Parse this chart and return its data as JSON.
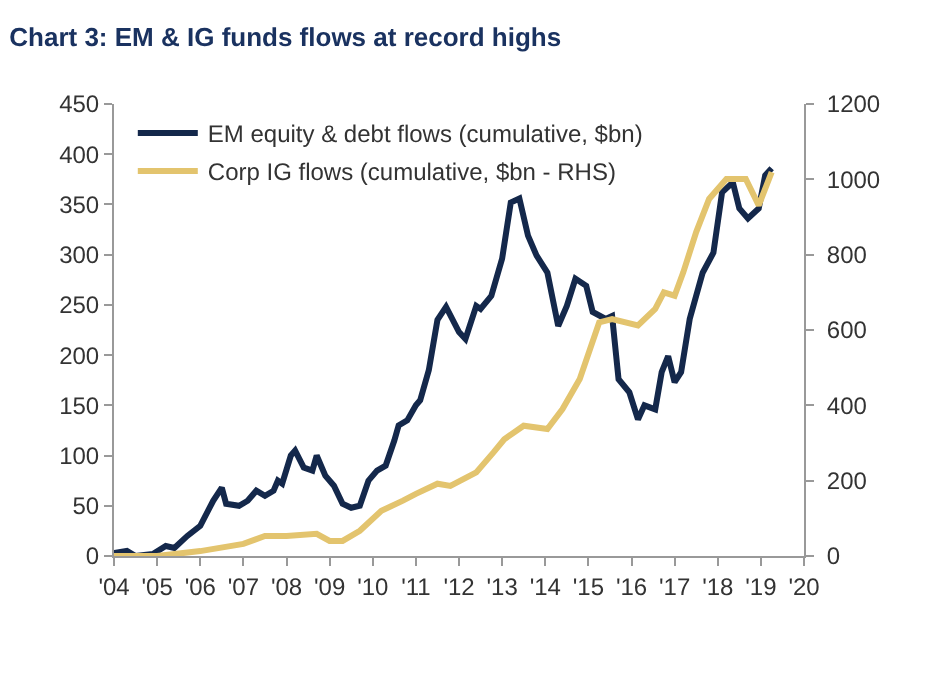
{
  "chart_data": {
    "type": "line",
    "title": "Chart 3: EM & IG funds flows at record highs",
    "xlim": [
      2004,
      2020
    ],
    "xticks": [
      {
        "value": 2004,
        "label": "'04"
      },
      {
        "value": 2005,
        "label": "'05"
      },
      {
        "value": 2006,
        "label": "'06"
      },
      {
        "value": 2007,
        "label": "'07"
      },
      {
        "value": 2008,
        "label": "'08"
      },
      {
        "value": 2009,
        "label": "'09"
      },
      {
        "value": 2010,
        "label": "'10"
      },
      {
        "value": 2011,
        "label": "'11"
      },
      {
        "value": 2012,
        "label": "'12"
      },
      {
        "value": 2013,
        "label": "'13"
      },
      {
        "value": 2014,
        "label": "'14"
      },
      {
        "value": 2015,
        "label": "'15"
      },
      {
        "value": 2016,
        "label": "'16"
      },
      {
        "value": 2017,
        "label": "'17"
      },
      {
        "value": 2018,
        "label": "'18"
      },
      {
        "value": 2019,
        "label": "'19"
      },
      {
        "value": 2020,
        "label": "'20"
      }
    ],
    "ylim": [
      0,
      450
    ],
    "yticks": [
      0,
      50,
      100,
      150,
      200,
      250,
      300,
      350,
      400,
      450
    ],
    "y2lim": [
      0,
      1200
    ],
    "y2ticks": [
      0,
      200,
      400,
      600,
      800,
      1000,
      1200
    ],
    "legend": "top left",
    "marker": "none",
    "line_style": "solid",
    "series": [
      {
        "name": "EM equity & debt flows (cumulative, $bn)",
        "color": "#14284b",
        "x": [
          2004.0,
          2004.3,
          2004.5,
          2004.9,
          2005.2,
          2005.4,
          2005.7,
          2006.0,
          2006.3,
          2006.5,
          2006.6,
          2006.9,
          2007.1,
          2007.3,
          2007.5,
          2007.7,
          2007.8,
          2007.9,
          2008.1,
          2008.2,
          2008.4,
          2008.6,
          2008.7,
          2008.9,
          2009.1,
          2009.3,
          2009.5,
          2009.7,
          2009.9,
          2010.1,
          2010.3,
          2010.5,
          2010.6,
          2010.8,
          2011.0,
          2011.1,
          2011.3,
          2011.5,
          2011.7,
          2012.0,
          2012.15,
          2012.4,
          2012.5,
          2012.75,
          2013.0,
          2013.2,
          2013.4,
          2013.6,
          2013.8,
          2014.05,
          2014.3,
          2014.5,
          2014.7,
          2014.95,
          2015.1,
          2015.4,
          2015.55,
          2015.7,
          2015.95,
          2016.15,
          2016.3,
          2016.55,
          2016.7,
          2016.85,
          2017.0,
          2017.15,
          2017.35,
          2017.65,
          2017.9,
          2018.1,
          2018.35,
          2018.5,
          2018.7,
          2018.95,
          2019.1,
          2019.25
        ],
        "values": [
          3,
          5,
          0,
          2,
          10,
          8,
          20,
          30,
          55,
          68,
          52,
          50,
          55,
          65,
          60,
          65,
          75,
          72,
          100,
          105,
          88,
          85,
          100,
          80,
          70,
          52,
          48,
          50,
          75,
          85,
          90,
          115,
          130,
          135,
          150,
          155,
          185,
          235,
          248,
          223,
          216,
          249,
          246,
          259,
          296,
          352,
          356,
          319,
          299,
          282,
          229,
          249,
          276,
          269,
          243,
          236,
          239,
          176,
          163,
          136,
          150,
          146,
          183,
          199,
          173,
          183,
          236,
          282,
          302,
          362,
          372,
          346,
          336,
          346,
          379,
          386
        ]
      },
      {
        "name": "Corp IG flows (cumulative, $bn - RHS)",
        "color": "#e3c46e",
        "axis": "y2",
        "x": [
          2004.0,
          2005.0,
          2006.0,
          2007.0,
          2007.5,
          2008.0,
          2008.7,
          2009.0,
          2009.3,
          2009.7,
          2010.2,
          2010.7,
          2011.0,
          2011.5,
          2011.8,
          2012.4,
          2012.8,
          2013.05,
          2013.5,
          2014.05,
          2014.4,
          2014.8,
          2015.25,
          2015.55,
          2016.15,
          2016.55,
          2016.75,
          2017.0,
          2017.2,
          2017.5,
          2017.8,
          2018.2,
          2018.65,
          2018.95,
          2019.25
        ],
        "values": [
          0,
          0,
          13,
          32,
          53,
          53,
          59,
          40,
          40,
          67,
          120,
          147,
          165,
          192,
          186,
          222,
          275,
          310,
          346,
          337,
          390,
          470,
          620,
          629,
          612,
          656,
          700,
          691,
          753,
          860,
          948,
          1001,
          1001,
          931,
          1019
        ]
      }
    ]
  }
}
